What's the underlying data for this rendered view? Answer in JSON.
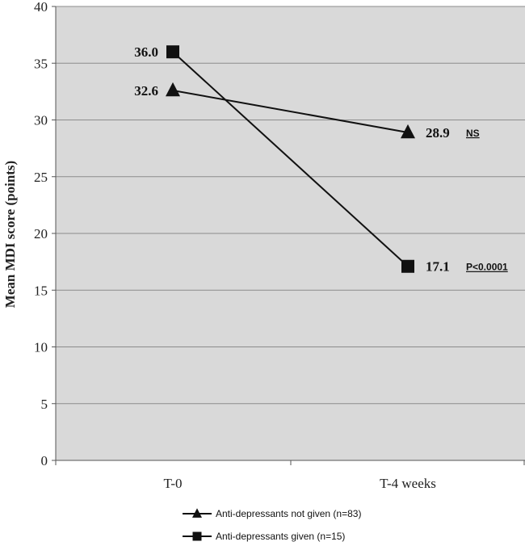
{
  "chart_data": {
    "type": "line",
    "title": "",
    "xlabel": "",
    "ylabel": "Mean MDI score (points)",
    "ylim": [
      0,
      40
    ],
    "ytick_step": 5,
    "categories": [
      "T-0",
      "T-4 weeks"
    ],
    "grid": true,
    "legend_position": "bottom",
    "series": [
      {
        "name": "Anti-depressants not given (n=83)",
        "marker": "triangle",
        "values": [
          32.6,
          28.9
        ],
        "value_labels": [
          "32.6",
          "28.9"
        ],
        "significance": "NS"
      },
      {
        "name": "Anti-depressants given (n=15)",
        "marker": "square",
        "values": [
          36.0,
          17.1
        ],
        "value_labels": [
          "36.0",
          "17.1"
        ],
        "significance": "P<0.0001"
      }
    ],
    "colors": {
      "plot_background": "#d9d9d9",
      "gridline": "#8c8c8c",
      "series": "#111111"
    }
  }
}
